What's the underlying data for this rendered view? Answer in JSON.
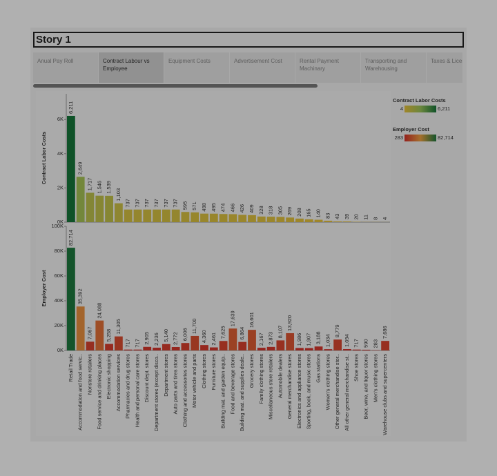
{
  "story": {
    "title": "Story 1",
    "tabs": [
      "Anual Pay Roll",
      "Contract Labour vs Employee",
      "Equipment Costs",
      "Advertisement Cost",
      "Rental Payment Machinary",
      "Transporting and Warehousing",
      "Taxes & Licences"
    ],
    "selected_tab": 1
  },
  "chart_data": [
    {
      "type": "bar",
      "y_label": "Contract Labor Costs",
      "values": [
        6211,
        2649,
        1717,
        1546,
        1539,
        1103,
        737,
        737,
        737,
        737,
        737,
        737,
        595,
        571,
        498,
        495,
        474,
        466,
        426,
        409,
        328,
        318,
        305,
        269,
        208,
        165,
        140,
        83,
        43,
        39,
        20,
        11,
        8,
        4
      ],
      "value_labels": [
        "6,211",
        "2,649",
        "1,717",
        "1,546",
        "1,539",
        "1,103",
        "737",
        "737",
        "737",
        "737",
        "737",
        "737",
        "595",
        "571",
        "498",
        "495",
        "474",
        "466",
        "426",
        "409",
        "328",
        "318",
        "305",
        "269",
        "208",
        "165",
        "140",
        "83",
        "43",
        "39",
        "20",
        "11",
        "8",
        "4"
      ],
      "ylim": [
        0,
        7500
      ],
      "yticks": [
        {
          "value": 0,
          "label": "0K"
        },
        {
          "value": 2000,
          "label": "2K"
        },
        {
          "value": 4000,
          "label": "4K"
        },
        {
          "value": 6000,
          "label": "6K"
        }
      ],
      "legend": {
        "title": "Contract Labor Costs",
        "min": 4,
        "max": {
          "value": 6211,
          "label": "6,211"
        },
        "colors": [
          "#e9c23c",
          "#9cc45a",
          "#17773b"
        ]
      }
    },
    {
      "type": "bar",
      "y_label": "Employer Cost",
      "categories": [
        "Retail Trade",
        "Accommodation and food servic..",
        "Nonstore retailers",
        "Food service and drinking places",
        "Electronic shopping",
        "Accommodation services",
        "Pharmacies and drug stores",
        "Health and personal care stores",
        "Discount dept. stores",
        "Department stores (except disco..",
        "Department stores",
        "Auto parts and tires stores",
        "Clothing and accessories stores",
        "Motor vehicle and parts",
        "Clothing stores",
        "Furniture stores",
        "Building mat. and garden equip..",
        "Food and beverage stores",
        "Building mat. and supplies deale..",
        "Grocery stores",
        "Family clothing stores",
        "Miscellaneous store retailers",
        "Automobile dealers",
        "General merchandise stores",
        "Electronics and appliance stores",
        "Sporting, book, and music stores",
        "Gas stations",
        "Women's clothing stores",
        "Other general merchandise stor..",
        "All other general merchandise st..",
        "Shoe stores",
        "Beer, wine, and liquor stores",
        "Men's clothing stores",
        "Warehouse clubs and supercenters"
      ],
      "values": [
        82714,
        35392,
        7067,
        24088,
        5258,
        11305,
        717,
        717,
        2905,
        2236,
        5140,
        2772,
        6006,
        11700,
        4360,
        2461,
        7625,
        17639,
        6864,
        16601,
        2167,
        2873,
        8107,
        13920,
        1986,
        1907,
        3188,
        1034,
        8779,
        1094,
        717,
        590,
        283,
        7686
      ],
      "value_labels": [
        "82,714",
        "35,392",
        "7,067",
        "24,088",
        "5,258",
        "11,305",
        "717",
        "717",
        "2,905",
        "2,236",
        "5,140",
        "2,772",
        "6,006",
        "11,700",
        "4,360",
        "2,461",
        "7,625",
        "17,639",
        "6,864",
        "16,601",
        "2,167",
        "2,873",
        "8,107",
        "13,920",
        "1,986",
        "1,907",
        "3,188",
        "1,034",
        "8,779",
        "1,094",
        "717",
        "590",
        "283",
        "7,686"
      ],
      "ylim": [
        0,
        100000
      ],
      "yticks": [
        {
          "value": 0,
          "label": "0K"
        },
        {
          "value": 20000,
          "label": "20K"
        },
        {
          "value": 40000,
          "label": "40K"
        },
        {
          "value": 60000,
          "label": "60K"
        },
        {
          "value": 80000,
          "label": "80K"
        },
        {
          "value": 100000,
          "label": "100K"
        }
      ],
      "legend": {
        "title": "Employer Cost",
        "min": 283,
        "max": {
          "value": 82714,
          "label": "82,714"
        },
        "colors": [
          "#d6302b",
          "#f0a242",
          "#1d7a3f"
        ]
      }
    }
  ]
}
